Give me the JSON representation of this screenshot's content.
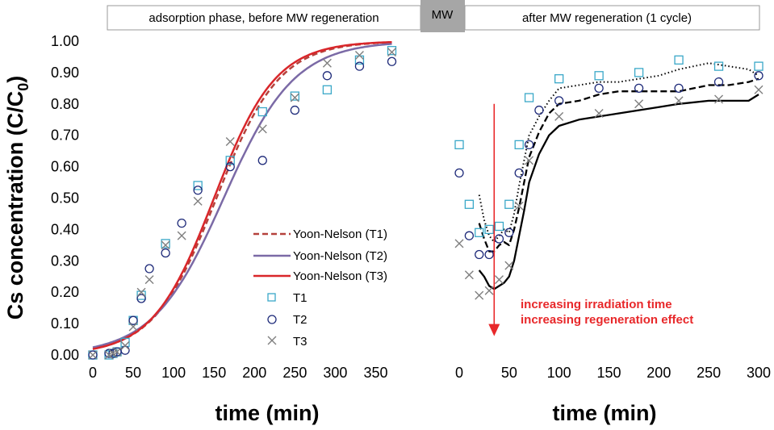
{
  "chart_data": [
    {
      "type": "line",
      "name": "adsorption",
      "xlabel": "time (min)",
      "ylabel_main": "Cs concentration (C/C",
      "ylabel_sub": "0",
      "ylabel_close": ")",
      "xlim": [
        0,
        370
      ],
      "ylim": [
        0,
        1
      ],
      "xticks": [
        "0",
        "50",
        "100",
        "150",
        "200",
        "250",
        "300",
        "350"
      ],
      "xtick_values": [
        0,
        50,
        100,
        150,
        200,
        250,
        300,
        350
      ],
      "yticks": [
        "0.00",
        "0.10",
        "0.20",
        "0.30",
        "0.40",
        "0.50",
        "0.60",
        "0.70",
        "0.80",
        "0.90",
        "1.00"
      ],
      "ytick_values": [
        0,
        0.1,
        0.2,
        0.3,
        0.4,
        0.5,
        0.6,
        0.7,
        0.8,
        0.9,
        1.0
      ],
      "curves": [
        {
          "name": "Yoon-Nelson (T1)",
          "style": "dashed",
          "color": "#b5423c",
          "k": 0.0257,
          "tau": 153
        },
        {
          "name": "Yoon-Nelson (T2)",
          "style": "solid",
          "color": "#7b6aa6",
          "k": 0.0228,
          "tau": 162
        },
        {
          "name": "Yoon-Nelson (T3)",
          "style": "solid",
          "color": "#d9262a",
          "k": 0.0263,
          "tau": 150
        }
      ],
      "series": [
        {
          "name": "T1",
          "marker": "square",
          "color": "#3aa8c8",
          "x": [
            0,
            20,
            25,
            30,
            40,
            50,
            60,
            90,
            130,
            170,
            210,
            250,
            290,
            330,
            370
          ],
          "y": [
            0.0,
            0.0,
            0.005,
            0.01,
            0.04,
            0.11,
            0.19,
            0.355,
            0.54,
            0.62,
            0.775,
            0.825,
            0.845,
            0.94,
            0.97
          ]
        },
        {
          "name": "T2",
          "marker": "circle",
          "color": "#1f2b7a",
          "x": [
            0,
            20,
            25,
            30,
            40,
            50,
            60,
            70,
            90,
            110,
            130,
            170,
            210,
            250,
            290,
            330,
            370
          ],
          "y": [
            0.0,
            0.005,
            0.005,
            0.01,
            0.015,
            0.11,
            0.18,
            0.275,
            0.325,
            0.42,
            0.525,
            0.6,
            0.62,
            0.78,
            0.89,
            0.92,
            0.935
          ]
        },
        {
          "name": "T3",
          "marker": "cross",
          "color": "#7f7f7f",
          "x": [
            0,
            20,
            25,
            30,
            40,
            50,
            60,
            70,
            90,
            110,
            130,
            170,
            210,
            250,
            290,
            330,
            370
          ],
          "y": [
            0.0,
            0.0,
            0.005,
            0.01,
            0.03,
            0.09,
            0.2,
            0.24,
            0.35,
            0.38,
            0.49,
            0.68,
            0.72,
            0.82,
            0.93,
            0.955,
            0.965
          ]
        }
      ]
    },
    {
      "type": "line",
      "name": "after-regeneration",
      "xlabel": "time (min)",
      "xlim": [
        -10,
        300
      ],
      "ylim": [
        0,
        1
      ],
      "xticks": [
        "0",
        "50",
        "100",
        "150",
        "200",
        "250",
        "300"
      ],
      "xtick_values": [
        0,
        50,
        100,
        150,
        200,
        250,
        300
      ],
      "lines": [
        {
          "name": "T1 trend",
          "style": "dotted",
          "color": "#000000",
          "x": [
            20,
            25,
            30,
            35,
            40,
            45,
            50,
            55,
            60,
            65,
            70,
            80,
            90,
            100,
            120,
            140,
            160,
            180,
            200,
            220,
            250,
            270,
            290,
            300
          ],
          "y": [
            0.51,
            0.43,
            0.38,
            0.36,
            0.38,
            0.4,
            0.39,
            0.45,
            0.54,
            0.62,
            0.7,
            0.76,
            0.81,
            0.85,
            0.86,
            0.87,
            0.87,
            0.88,
            0.89,
            0.91,
            0.93,
            0.92,
            0.91,
            0.89
          ]
        },
        {
          "name": "T2 trend",
          "style": "dashed",
          "color": "#000000",
          "x": [
            20,
            25,
            30,
            35,
            40,
            45,
            50,
            55,
            60,
            65,
            70,
            80,
            90,
            100,
            120,
            140,
            160,
            180,
            200,
            220,
            250,
            270,
            290,
            300
          ],
          "y": [
            0.42,
            0.37,
            0.33,
            0.33,
            0.35,
            0.36,
            0.35,
            0.4,
            0.47,
            0.55,
            0.63,
            0.71,
            0.77,
            0.8,
            0.81,
            0.83,
            0.84,
            0.84,
            0.84,
            0.84,
            0.86,
            0.86,
            0.87,
            0.88
          ]
        },
        {
          "name": "T3 trend",
          "style": "solid",
          "color": "#000000",
          "x": [
            20,
            25,
            30,
            35,
            40,
            45,
            50,
            55,
            60,
            65,
            70,
            80,
            90,
            100,
            120,
            140,
            160,
            180,
            200,
            220,
            250,
            270,
            290,
            300
          ],
          "y": [
            0.27,
            0.25,
            0.22,
            0.21,
            0.22,
            0.23,
            0.25,
            0.3,
            0.38,
            0.46,
            0.55,
            0.64,
            0.7,
            0.73,
            0.75,
            0.76,
            0.77,
            0.78,
            0.79,
            0.8,
            0.81,
            0.81,
            0.81,
            0.83
          ]
        }
      ],
      "series": [
        {
          "name": "T1",
          "marker": "square",
          "color": "#3aa8c8",
          "x": [
            0,
            10,
            20,
            30,
            40,
            50,
            60,
            70,
            100,
            140,
            180,
            220,
            260,
            300
          ],
          "y": [
            0.67,
            0.48,
            0.39,
            0.4,
            0.41,
            0.48,
            0.67,
            0.82,
            0.88,
            0.89,
            0.9,
            0.94,
            0.92,
            0.92
          ]
        },
        {
          "name": "T2",
          "marker": "circle",
          "color": "#1f2b7a",
          "x": [
            0,
            10,
            20,
            30,
            40,
            50,
            60,
            70,
            80,
            100,
            140,
            180,
            220,
            260,
            300
          ],
          "y": [
            0.58,
            0.38,
            0.32,
            0.32,
            0.37,
            0.39,
            0.58,
            0.67,
            0.78,
            0.81,
            0.85,
            0.85,
            0.85,
            0.87,
            0.89
          ]
        },
        {
          "name": "T3",
          "marker": "cross",
          "color": "#7f7f7f",
          "x": [
            0,
            10,
            20,
            30,
            40,
            50,
            60,
            70,
            100,
            140,
            180,
            220,
            260,
            300
          ],
          "y": [
            0.355,
            0.255,
            0.19,
            0.205,
            0.24,
            0.285,
            0.475,
            0.62,
            0.76,
            0.77,
            0.8,
            0.81,
            0.815,
            0.845
          ]
        }
      ],
      "arrow": {
        "x": 35,
        "y_from": 0.8,
        "y_to": 0.06,
        "color": "#e8282a"
      },
      "annotations": [
        "increasing irradiation time",
        "increasing regeneration effect"
      ]
    }
  ],
  "header": {
    "left_label": "adsorption phase, before MW regeneration",
    "middle_label": "MW",
    "right_label": "after MW regeneration (1 cycle)"
  },
  "legend": {
    "items": [
      "Yoon-Nelson (T1)",
      "Yoon-Nelson (T2)",
      "Yoon-Nelson (T3)",
      "T1",
      "T2",
      "T3"
    ]
  },
  "colors": {
    "mw_box": "#a6a6a6",
    "arrow": "#e8282a",
    "annotation": "#e8282a"
  }
}
